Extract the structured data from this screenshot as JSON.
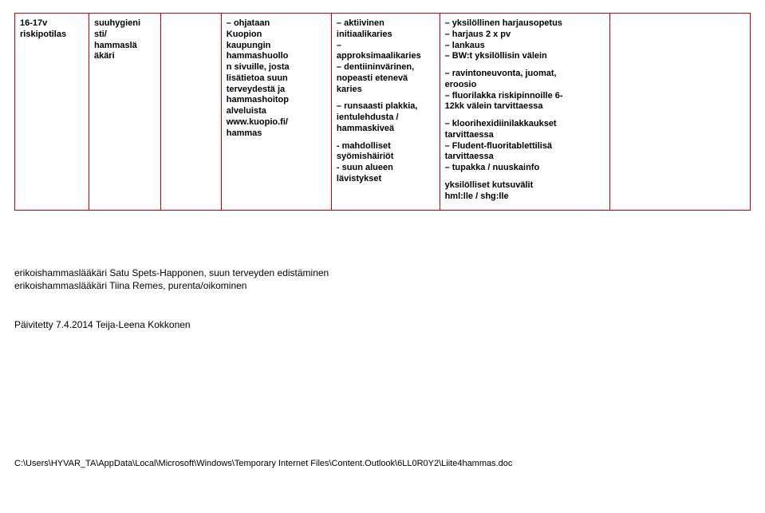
{
  "table": {
    "c0": {
      "line1": "16-17v",
      "line2": "riskipotilas"
    },
    "c1": {
      "line1": "suuhygieni",
      "line2": "sti/",
      "line3": "hammaslä",
      "line4": "äkäri"
    },
    "c2": "",
    "c3": {
      "l1": "ohjataan",
      "l2": "Kuopion",
      "l3": "kaupungin",
      "l4": "hammashuollo",
      "l5": "n sivuille, josta",
      "l6": "lisätietoa suun",
      "l7": "terveydestä ja",
      "l8": "hammashoitop",
      "l9": "alveluista",
      "l10": "www.kuopio.fi/",
      "l11": "hammas"
    },
    "c4": {
      "a1": "aktiivinen",
      "a2": "initiaalikaries",
      "b1": "approksimaalikaries",
      "c1": "dentiininvärinen,",
      "c2": "nopeasti etenevä",
      "c3": "karies",
      "d1": "runsaasti plakkia,",
      "d2": " ientulehdusta /",
      "d3": " hammaskiveä",
      "e1": "mahdolliset",
      "e2": "syömishäiriöt",
      "f1": "suun alueen",
      "f2": "lävistykset"
    },
    "c5": {
      "l1": "yksilöllinen harjausopetus",
      "l2": "harjaus 2 x pv",
      "l3": "lankaus",
      "l4": "BW:t yksilöllisin välein",
      "l5": "ravintoneuvonta, juomat,",
      "l5b": "eroosio",
      "l6a": "fluorilakka riskipinnoille 6-",
      "l6b": "12kk välein tarvittaessa",
      "l7a": "kloorihexidiinilakkaukset",
      "l7b": "tarvittaessa",
      "l8a": "Fludent-fluoritablettilisä",
      "l8b": "tarvittaessa",
      "l9": "tupakka / nuuskainfo",
      "l10a": " yksilölliset kutsuvälit",
      "l10b": "hml:lle / shg:lle"
    }
  },
  "below": {
    "line1": "erikoishammaslääkäri Satu Spets-Happonen, suun terveyden edistäminen",
    "line2": "erikoishammaslääkäri Tiina Remes, purenta/oikominen",
    "line3": "Päivitetty 7.4.2014 Teija-Leena Kokkonen"
  },
  "footer": "C:\\Users\\HYVAR_TA\\AppData\\Local\\Microsoft\\Windows\\Temporary Internet Files\\Content.Outlook\\6LL0R0Y2\\Liite4hammas.doc"
}
